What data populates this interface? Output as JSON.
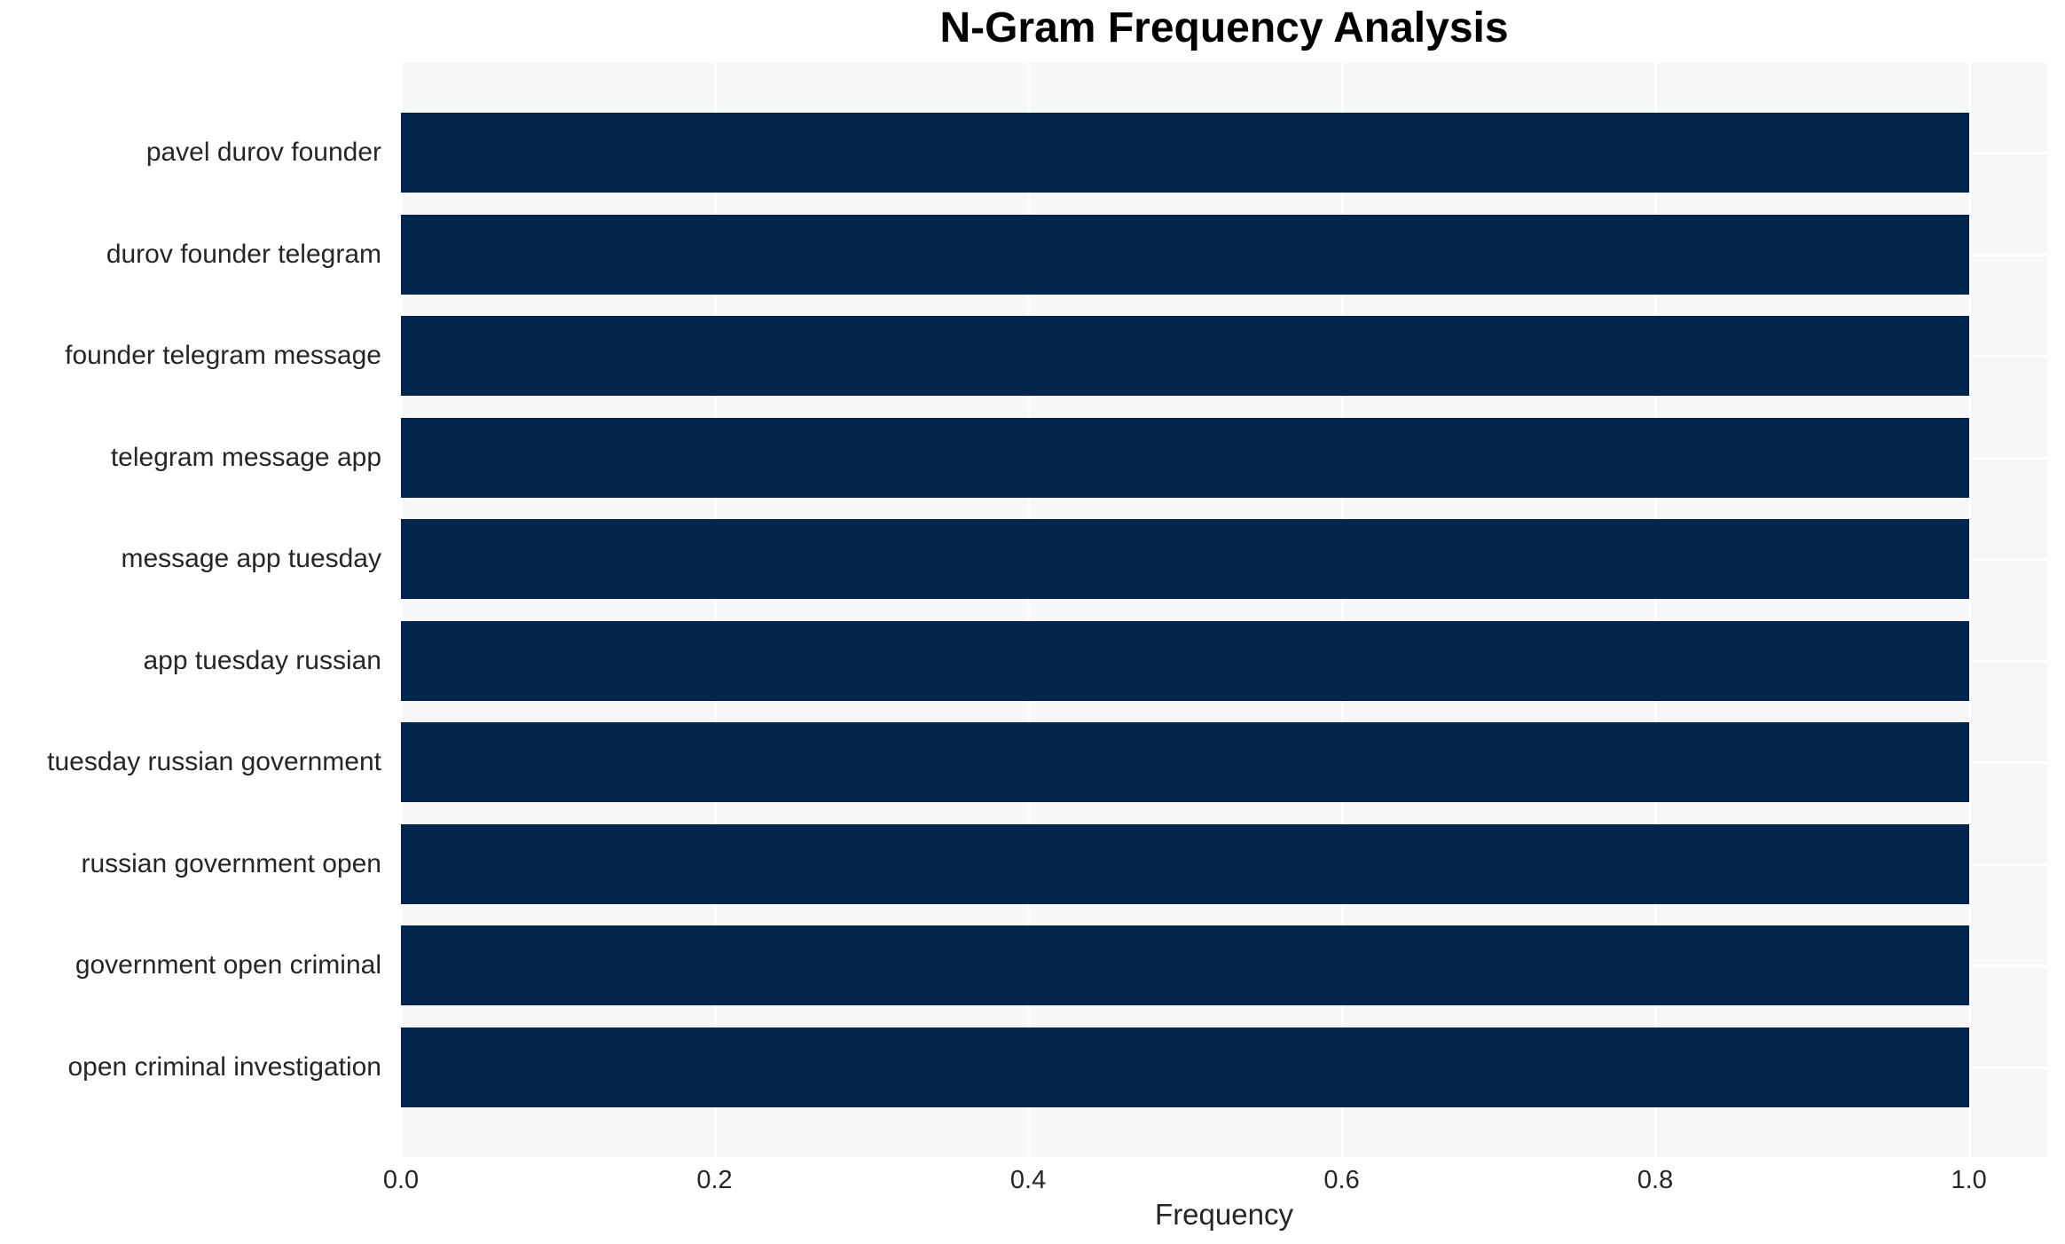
{
  "chart_data": {
    "type": "bar",
    "orientation": "horizontal",
    "title": "N-Gram Frequency Analysis",
    "xlabel": "Frequency",
    "ylabel": "",
    "categories": [
      "pavel durov founder",
      "durov founder telegram",
      "founder telegram message",
      "telegram message app",
      "message app tuesday",
      "app tuesday russian",
      "tuesday russian government",
      "russian government open",
      "government open criminal",
      "open criminal investigation"
    ],
    "values": [
      1.0,
      1.0,
      1.0,
      1.0,
      1.0,
      1.0,
      1.0,
      1.0,
      1.0,
      1.0
    ],
    "xlim": [
      0.0,
      1.05
    ],
    "xticks": [
      "0.0",
      "0.2",
      "0.4",
      "0.6",
      "0.8",
      "1.0"
    ],
    "grid": "on",
    "legend": "none",
    "colors": {
      "bar": "#02254E",
      "plot_background": "#F7F7F7",
      "gridline": "#FFFFFF",
      "title_text": "#000000",
      "tick_text": "#262626"
    }
  }
}
